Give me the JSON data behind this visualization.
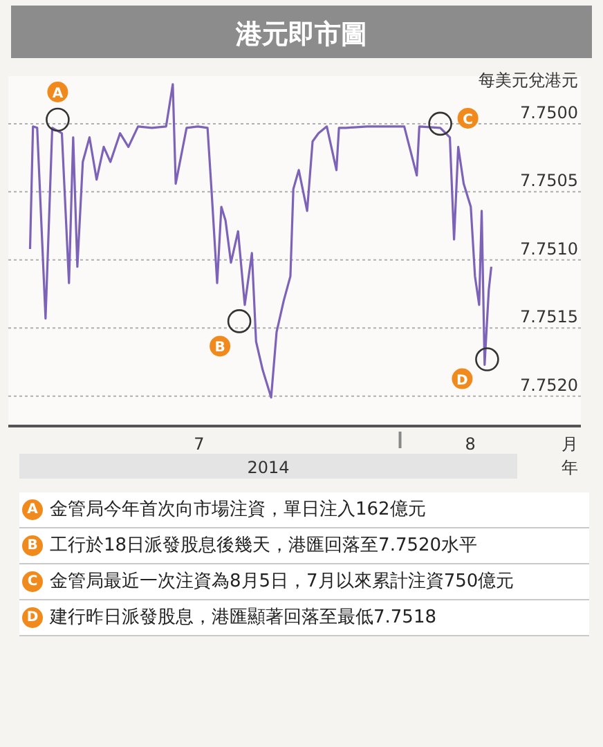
{
  "chart_data": {
    "type": "line",
    "title": "港元即市圖",
    "ylabel": "每美元兌港元",
    "xlabel": "月",
    "xlim": [
      "2014-06-23",
      "2014-08-19"
    ],
    "xticks": [
      {
        "value": "2014-07-12",
        "label": "7"
      },
      {
        "value": "2014-08-01",
        "label": null
      },
      {
        "value": "2014-08-08",
        "label": "8"
      }
    ],
    "ylim": [
      7.75222,
      7.74965
    ],
    "yticks": [
      {
        "value": 7.75,
        "label": "7.7500"
      },
      {
        "value": 7.7505,
        "label": "7.7505"
      },
      {
        "value": 7.751,
        "label": "7.7510"
      },
      {
        "value": 7.7515,
        "label": "7.7515"
      },
      {
        "value": 7.752,
        "label": "7.7520"
      }
    ],
    "grid": "y",
    "series": [
      {
        "color": "#7d63b8",
        "x": [
          "2014-06-25T04:00",
          "2014-06-25T11:00",
          "2014-06-25T21:00",
          "2014-06-26T17:00",
          "2014-06-27T09:00",
          "2014-06-28T08:00",
          "2014-06-29T01:00",
          "2014-06-29T11:00",
          "2014-06-29T21:00",
          "2014-06-30T10:00",
          "2014-07-01T02:00",
          "2014-07-01T19:00",
          "2014-07-02T12:00",
          "2014-07-03T04:00",
          "2014-07-04T03:00",
          "2014-07-04T23:00",
          "2014-07-05T22:00",
          "2014-07-07T07:00",
          "2014-07-08T17:00",
          "2014-07-09T09:00",
          "2014-07-09T16:00",
          "2014-07-10T18:00",
          "2014-07-11T21:00",
          "2014-07-12T20:00",
          "2014-07-13T06:00",
          "2014-07-13T19:00",
          "2014-07-14T05:00",
          "2014-07-14T15:00",
          "2014-07-15T04:00",
          "2014-07-15T21:00",
          "2014-07-16T13:00",
          "2014-07-17T06:00",
          "2014-07-17T16:00",
          "2014-07-18T08:00",
          "2014-07-19T04:00",
          "2014-07-19T17:00",
          "2014-07-20T10:00",
          "2014-07-21T02:00",
          "2014-07-21T09:00",
          "2014-07-21T22:00",
          "2014-07-22T18:00",
          "2014-07-23T07:00",
          "2014-07-23T21:00",
          "2014-07-24T17:00",
          "2014-07-25T16:00",
          "2014-07-25T22:00",
          "2014-07-26T15:00",
          "2014-07-28T17:00",
          "2014-07-30T18:00",
          "2014-08-01T10:00",
          "2014-08-02T16:00",
          "2014-08-02T22:00",
          "2014-08-05T00:00",
          "2014-08-05T23:00",
          "2014-08-06T09:00",
          "2014-08-06T19:00",
          "2014-08-07T08:00",
          "2014-08-08T01:00",
          "2014-08-08T11:00",
          "2014-08-08T21:00",
          "2014-08-09T03:00",
          "2014-08-09T10:00",
          "2014-08-09T20:00",
          "2014-08-10T02:00"
        ],
        "values": [
          7.75092,
          7.75002,
          7.75003,
          7.75143,
          7.75003,
          7.75007,
          7.75117,
          7.7501,
          7.75105,
          7.75028,
          7.7501,
          7.75041,
          7.75017,
          7.75028,
          7.75007,
          7.75017,
          7.75002,
          7.75003,
          7.75002,
          7.74971,
          7.75044,
          7.75003,
          7.75002,
          7.75003,
          7.75051,
          7.75117,
          7.75061,
          7.75071,
          7.75102,
          7.75079,
          7.75133,
          7.75095,
          7.7516,
          7.75181,
          7.75201,
          7.75153,
          7.7513,
          7.75112,
          7.75048,
          7.75034,
          7.75064,
          7.75013,
          7.75007,
          7.75002,
          7.75034,
          7.75003,
          7.75003,
          7.75002,
          7.75002,
          7.75002,
          7.75038,
          7.75002,
          7.75003,
          7.7501,
          7.75085,
          7.75017,
          7.75044,
          7.75061,
          7.75112,
          7.75133,
          7.75064,
          7.75177,
          7.75122,
          7.75105
        ]
      }
    ],
    "annotations": [
      {
        "text": "A",
        "x": "2014-06-27T22:00",
        "y": 7.74997
      },
      {
        "text": "B",
        "x": "2014-07-16T00:00",
        "y": 7.75145
      },
      {
        "text": "C",
        "x": "2014-08-05T00:00",
        "y": 7.75
      },
      {
        "text": "D",
        "x": "2014-08-09T16:00",
        "y": 7.75173
      },
      "2014",
      "年",
      "金管局今年首次向市場注資，單日注入162億元",
      "工行於18日派發股息後幾天，港匯回落至7.7520水平",
      "金管局最近一次注資為8月5日，7月以來累計注資750億元",
      "建行昨日派發股息，港匯顯著回落至最低7.7518"
    ]
  }
}
